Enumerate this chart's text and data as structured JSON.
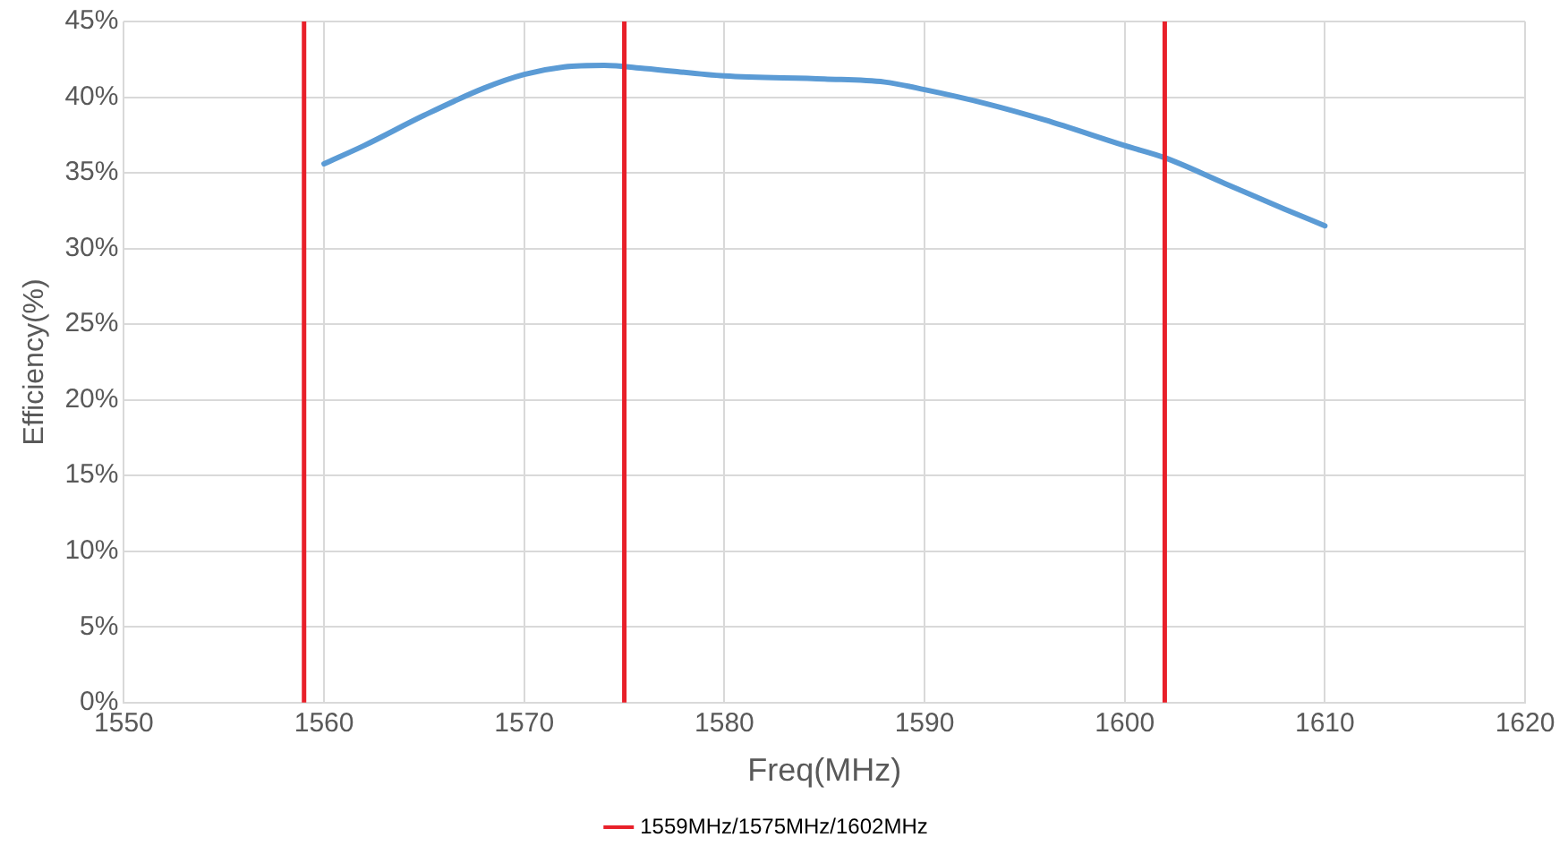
{
  "chart_data": {
    "type": "line",
    "xlabel": "Freq(MHz)",
    "ylabel": "Efficiency(%)",
    "x": [
      1560,
      1562,
      1565,
      1568,
      1570,
      1572,
      1574,
      1576,
      1580,
      1585,
      1588,
      1590,
      1593,
      1596,
      1600,
      1602,
      1605,
      1608,
      1610
    ],
    "series": [
      {
        "color": "#5b9bd5",
        "values": [
          35.6,
          36.8,
          38.8,
          40.6,
          41.5,
          42,
          42.1,
          41.9,
          41.4,
          41.2,
          41,
          40.5,
          39.6,
          38.5,
          36.8,
          36,
          34.3,
          32.6,
          31.5
        ]
      }
    ],
    "xlim": [
      1550,
      1620
    ],
    "xticks": [
      1550,
      1560,
      1570,
      1580,
      1590,
      1600,
      1610,
      1620
    ],
    "ylim": [
      0,
      45
    ],
    "yticks": [
      {
        "value": 0,
        "label": "0%"
      },
      {
        "value": 5,
        "label": "5%"
      },
      {
        "value": 10,
        "label": "10%"
      },
      {
        "value": 15,
        "label": "15%"
      },
      {
        "value": 20,
        "label": "20%"
      },
      {
        "value": 25,
        "label": "25%"
      },
      {
        "value": 30,
        "label": "30%"
      },
      {
        "value": 35,
        "label": "35%"
      },
      {
        "value": 40,
        "label": "40%"
      },
      {
        "value": 45,
        "label": "45%"
      }
    ],
    "ref_lines": [
      {
        "axis": "x",
        "value": 1559,
        "label": "1559MHz/1575MHz/1602MHz",
        "color": "#e8202a"
      },
      {
        "axis": "x",
        "value": 1575,
        "color": "#e8202a"
      },
      {
        "axis": "x",
        "value": 1602,
        "color": "#e8202a"
      }
    ],
    "grid": true,
    "legend": "bottom",
    "marker": "none",
    "line_style": "solid"
  }
}
